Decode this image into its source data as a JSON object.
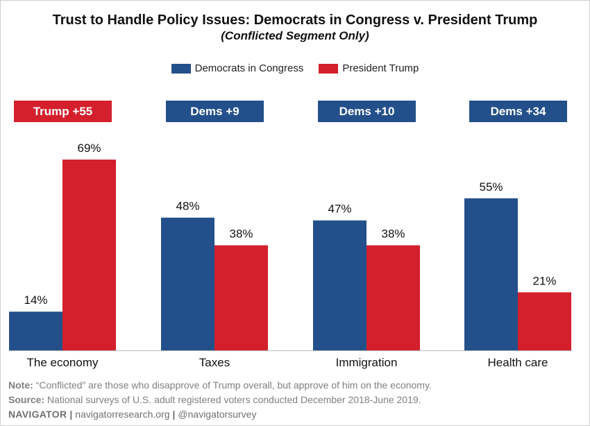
{
  "chart_data": {
    "type": "bar",
    "title": "Trust to Handle Policy Issues: Democrats in Congress v. President Trump",
    "subtitle": "(Conflicted Segment Only)",
    "categories": [
      "The economy",
      "Taxes",
      "Immigration",
      "Health care"
    ],
    "series": [
      {
        "name": "Democrats in Congress",
        "color": "#23508a",
        "values": [
          14,
          48,
          47,
          55
        ]
      },
      {
        "name": "President Trump",
        "color": "#d3202c",
        "values": [
          69,
          38,
          38,
          21
        ]
      }
    ],
    "value_labels": {
      "Democrats in Congress": [
        "14%",
        "48%",
        "47%",
        "55%"
      ],
      "President Trump": [
        "69%",
        "38%",
        "38%",
        "21%"
      ]
    },
    "net_labels": [
      {
        "text": "Trump +55",
        "color": "#d3202c"
      },
      {
        "text": "Dems +9",
        "color": "#23508a"
      },
      {
        "text": "Dems +10",
        "color": "#23508a"
      },
      {
        "text": "Dems +34",
        "color": "#23508a"
      }
    ],
    "ylim": [
      0,
      69
    ],
    "grid": false,
    "legend_position": "top-center",
    "xlabel": "",
    "ylabel": ""
  },
  "footer": {
    "note_label": "Note:",
    "note_text": " “Conflicted” are those who disapprove of Trump overall, but approve of him on the economy.",
    "source_label": "Source:",
    "source_text": " National surveys of U.S. adult registered voters conducted December 2018-June 2019.",
    "brand": "NAVIGATOR",
    "separator": "|",
    "website": "navigatorresearch.org",
    "handle": "@navigatorsurvey"
  }
}
